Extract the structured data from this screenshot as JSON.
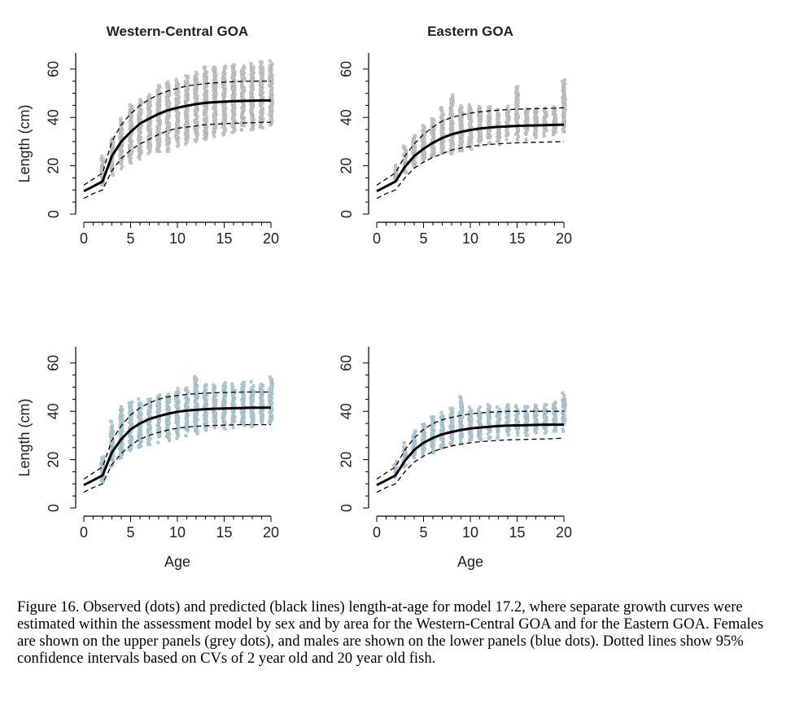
{
  "figure": {
    "caption": "Figure 16. Observed (dots) and predicted (black lines) length-at-age for model 17.2, where separate growth curves were estimated within the assessment model by sex and by area for the Western-Central GOA and for the Eastern GOA. Females are shown on the upper panels (grey dots), and males are shown on the lower panels (blue dots). Dotted lines show 95% confidence intervals based on CVs of 2 year old and 20 year old fish."
  },
  "colors": {
    "female_dots": "#c9c9c9",
    "male_dots": "#a9d3e0",
    "dot_edge": "#9a9a9a",
    "curve": "#000000"
  },
  "chart_data": [
    {
      "type": "scatter",
      "panel": "upper-left",
      "title": "Western-Central GOA",
      "xlabel": "",
      "ylabel": "Length (cm)",
      "xlim": [
        0,
        20
      ],
      "ylim": [
        0,
        65
      ],
      "xticks": [
        0,
        5,
        10,
        15,
        20
      ],
      "yticks": [
        0,
        20,
        40,
        60
      ],
      "dot_color": "female_dots",
      "observed_range": [
        [
          2,
          12,
          24
        ],
        [
          3,
          16,
          33
        ],
        [
          4,
          19,
          40
        ],
        [
          5,
          21,
          46
        ],
        [
          6,
          23,
          48
        ],
        [
          7,
          25,
          50
        ],
        [
          8,
          26,
          53
        ],
        [
          9,
          26,
          55
        ],
        [
          10,
          28,
          56
        ],
        [
          11,
          29,
          57
        ],
        [
          12,
          30,
          59
        ],
        [
          13,
          31,
          61
        ],
        [
          14,
          32,
          61
        ],
        [
          15,
          33,
          61
        ],
        [
          16,
          34,
          62
        ],
        [
          17,
          35,
          62
        ],
        [
          18,
          35,
          62
        ],
        [
          19,
          36,
          63
        ],
        [
          20,
          37,
          64
        ]
      ],
      "series": [
        {
          "role": "predicted",
          "ages": [
            0,
            1,
            2,
            3,
            4,
            5,
            6,
            7,
            8,
            9,
            10,
            11,
            12,
            13,
            14,
            15,
            16,
            17,
            18,
            19,
            20
          ],
          "values": [
            9.5,
            11.5,
            13.5,
            24,
            30,
            34,
            37.5,
            39.5,
            41.5,
            43,
            44,
            44.8,
            45.5,
            46,
            46.3,
            46.5,
            46.7,
            46.8,
            46.9,
            47,
            47
          ]
        },
        {
          "role": "upper-95-CI",
          "ages": [
            0,
            1,
            2,
            3,
            4,
            5,
            6,
            7,
            8,
            9,
            10,
            11,
            12,
            13,
            14,
            15,
            16,
            17,
            18,
            19,
            20
          ],
          "values": [
            12,
            14.5,
            17,
            30,
            37,
            41.5,
            45,
            47.5,
            49.5,
            51,
            52,
            53,
            53.5,
            54,
            54.3,
            54.6,
            54.8,
            54.9,
            55,
            55,
            55
          ]
        },
        {
          "role": "lower-95-CI",
          "ages": [
            0,
            1,
            2,
            3,
            4,
            5,
            6,
            7,
            8,
            9,
            10,
            11,
            12,
            13,
            14,
            15,
            16,
            17,
            18,
            19,
            20
          ],
          "values": [
            6.5,
            8.5,
            10,
            18,
            23,
            26.5,
            29,
            31,
            33,
            34.5,
            35.5,
            36,
            36.5,
            37,
            37.2,
            37.4,
            37.6,
            37.7,
            37.8,
            38,
            38
          ]
        }
      ]
    },
    {
      "type": "scatter",
      "panel": "upper-right",
      "title": "Eastern GOA",
      "xlabel": "",
      "ylabel": "",
      "xlim": [
        0,
        20
      ],
      "ylim": [
        0,
        65
      ],
      "xticks": [
        0,
        5,
        10,
        15,
        20
      ],
      "yticks": [
        0,
        20,
        40,
        60
      ],
      "dot_color": "female_dots",
      "observed_range": [
        [
          2,
          14,
          21
        ],
        [
          3,
          17,
          28
        ],
        [
          4,
          20,
          33
        ],
        [
          5,
          22,
          37
        ],
        [
          6,
          23,
          40
        ],
        [
          7,
          25,
          44
        ],
        [
          8,
          25,
          50
        ],
        [
          9,
          26,
          46
        ],
        [
          10,
          27,
          45
        ],
        [
          11,
          28,
          45
        ],
        [
          12,
          29,
          45
        ],
        [
          13,
          29,
          44
        ],
        [
          14,
          30,
          45
        ],
        [
          15,
          31,
          53
        ],
        [
          16,
          31,
          44
        ],
        [
          17,
          32,
          44
        ],
        [
          18,
          32,
          44
        ],
        [
          19,
          33,
          45
        ],
        [
          20,
          34,
          56
        ]
      ],
      "series": [
        {
          "role": "predicted",
          "ages": [
            0,
            1,
            2,
            3,
            4,
            5,
            6,
            7,
            8,
            9,
            10,
            11,
            12,
            13,
            14,
            15,
            16,
            17,
            18,
            19,
            20
          ],
          "values": [
            9.5,
            11.5,
            13.5,
            19.5,
            24,
            27,
            29.5,
            31.5,
            33,
            34,
            34.8,
            35.4,
            35.8,
            36.1,
            36.3,
            36.5,
            36.6,
            36.7,
            36.8,
            36.9,
            37
          ]
        },
        {
          "role": "upper-95-CI",
          "ages": [
            0,
            1,
            2,
            3,
            4,
            5,
            6,
            7,
            8,
            9,
            10,
            11,
            12,
            13,
            14,
            15,
            16,
            17,
            18,
            19,
            20
          ],
          "values": [
            12,
            14.5,
            17,
            24,
            29,
            33,
            36,
            38.5,
            40,
            41,
            41.8,
            42.3,
            42.7,
            43,
            43.2,
            43.4,
            43.5,
            43.6,
            43.7,
            43.8,
            44
          ]
        },
        {
          "role": "lower-95-CI",
          "ages": [
            0,
            1,
            2,
            3,
            4,
            5,
            6,
            7,
            8,
            9,
            10,
            11,
            12,
            13,
            14,
            15,
            16,
            17,
            18,
            19,
            20
          ],
          "values": [
            6.5,
            8.5,
            10,
            15,
            19,
            21.5,
            23.5,
            25,
            26.5,
            27.3,
            28,
            28.5,
            28.8,
            29.1,
            29.3,
            29.5,
            29.6,
            29.7,
            29.8,
            29.9,
            30
          ]
        }
      ]
    },
    {
      "type": "scatter",
      "panel": "lower-left",
      "title": "",
      "xlabel": "Age",
      "ylabel": "Length (cm)",
      "xlim": [
        0,
        20
      ],
      "ylim": [
        0,
        65
      ],
      "xticks": [
        0,
        5,
        10,
        15,
        20
      ],
      "yticks": [
        0,
        20,
        40,
        60
      ],
      "dot_color": "male_dots",
      "observed_range": [
        [
          2,
          11,
          21
        ],
        [
          3,
          17,
          36
        ],
        [
          4,
          20,
          42
        ],
        [
          5,
          23,
          44
        ],
        [
          6,
          25,
          45
        ],
        [
          7,
          26,
          46
        ],
        [
          8,
          27,
          47
        ],
        [
          9,
          28,
          48
        ],
        [
          10,
          29,
          50
        ],
        [
          11,
          30,
          50
        ],
        [
          12,
          31,
          55
        ],
        [
          13,
          32,
          51
        ],
        [
          14,
          33,
          51
        ],
        [
          15,
          33,
          52
        ],
        [
          16,
          33,
          51
        ],
        [
          17,
          34,
          52
        ],
        [
          18,
          34,
          52
        ],
        [
          19,
          35,
          53
        ],
        [
          20,
          35,
          55
        ]
      ],
      "series": [
        {
          "role": "predicted",
          "ages": [
            0,
            1,
            2,
            3,
            4,
            5,
            6,
            7,
            8,
            9,
            10,
            11,
            12,
            13,
            14,
            15,
            16,
            17,
            18,
            19,
            20
          ],
          "values": [
            9.5,
            11.5,
            13.5,
            23,
            28.5,
            32.5,
            35,
            36.8,
            38,
            39,
            39.8,
            40.3,
            40.6,
            40.9,
            41.1,
            41.2,
            41.3,
            41.4,
            41.5,
            41.5,
            41.5
          ]
        },
        {
          "role": "upper-95-CI",
          "ages": [
            0,
            1,
            2,
            3,
            4,
            5,
            6,
            7,
            8,
            9,
            10,
            11,
            12,
            13,
            14,
            15,
            16,
            17,
            18,
            19,
            20
          ],
          "values": [
            12,
            14.5,
            17,
            28,
            34,
            38.5,
            41.5,
            43.5,
            45,
            46,
            46.5,
            47,
            47.3,
            47.5,
            47.7,
            47.8,
            47.9,
            48,
            48,
            48,
            48
          ]
        },
        {
          "role": "lower-95-CI",
          "ages": [
            0,
            1,
            2,
            3,
            4,
            5,
            6,
            7,
            8,
            9,
            10,
            11,
            12,
            13,
            14,
            15,
            16,
            17,
            18,
            19,
            20
          ],
          "values": [
            6.5,
            8.5,
            10,
            18,
            22.5,
            26,
            28.5,
            30,
            31.3,
            32.3,
            33,
            33.5,
            33.8,
            34,
            34.2,
            34.3,
            34.4,
            34.5,
            34.5,
            34.5,
            34.5
          ]
        }
      ]
    },
    {
      "type": "scatter",
      "panel": "lower-right",
      "title": "",
      "xlabel": "Age",
      "ylabel": "",
      "xlim": [
        0,
        20
      ],
      "ylim": [
        0,
        65
      ],
      "xticks": [
        0,
        5,
        10,
        15,
        20
      ],
      "yticks": [
        0,
        20,
        40,
        60
      ],
      "dot_color": "male_dots",
      "observed_range": [
        [
          2,
          13,
          20
        ],
        [
          3,
          17,
          27
        ],
        [
          4,
          20,
          32
        ],
        [
          5,
          22,
          35
        ],
        [
          6,
          23,
          38
        ],
        [
          7,
          25,
          40
        ],
        [
          8,
          26,
          42
        ],
        [
          9,
          27,
          46
        ],
        [
          10,
          28,
          42
        ],
        [
          11,
          28,
          42
        ],
        [
          12,
          29,
          43
        ],
        [
          13,
          29,
          42
        ],
        [
          14,
          30,
          43
        ],
        [
          15,
          30,
          43
        ],
        [
          16,
          30,
          42
        ],
        [
          17,
          31,
          43
        ],
        [
          18,
          31,
          43
        ],
        [
          19,
          32,
          44
        ],
        [
          20,
          32,
          48
        ]
      ],
      "series": [
        {
          "role": "predicted",
          "ages": [
            0,
            1,
            2,
            3,
            4,
            5,
            6,
            7,
            8,
            9,
            10,
            11,
            12,
            13,
            14,
            15,
            16,
            17,
            18,
            19,
            20
          ],
          "values": [
            9.5,
            11.5,
            13.5,
            19.5,
            24,
            27,
            29,
            30.5,
            31.5,
            32.3,
            32.9,
            33.3,
            33.6,
            33.9,
            34.1,
            34.2,
            34.3,
            34.4,
            34.5,
            34.5,
            34.5
          ]
        },
        {
          "role": "upper-95-CI",
          "ages": [
            0,
            1,
            2,
            3,
            4,
            5,
            6,
            7,
            8,
            9,
            10,
            11,
            12,
            13,
            14,
            15,
            16,
            17,
            18,
            19,
            20
          ],
          "values": [
            12,
            14.5,
            17,
            24,
            29,
            32.5,
            35,
            36.5,
            37.5,
            38.3,
            38.9,
            39.3,
            39.6,
            39.8,
            40,
            40,
            40,
            40,
            40,
            40,
            40
          ]
        },
        {
          "role": "lower-95-CI",
          "ages": [
            0,
            1,
            2,
            3,
            4,
            5,
            6,
            7,
            8,
            9,
            10,
            11,
            12,
            13,
            14,
            15,
            16,
            17,
            18,
            19,
            20
          ],
          "values": [
            6.5,
            8.5,
            10,
            15,
            19,
            21.5,
            23.3,
            24.7,
            25.7,
            26.4,
            27,
            27.4,
            27.7,
            28,
            28.2,
            28.3,
            28.4,
            28.5,
            28.6,
            28.7,
            29
          ]
        }
      ]
    }
  ]
}
